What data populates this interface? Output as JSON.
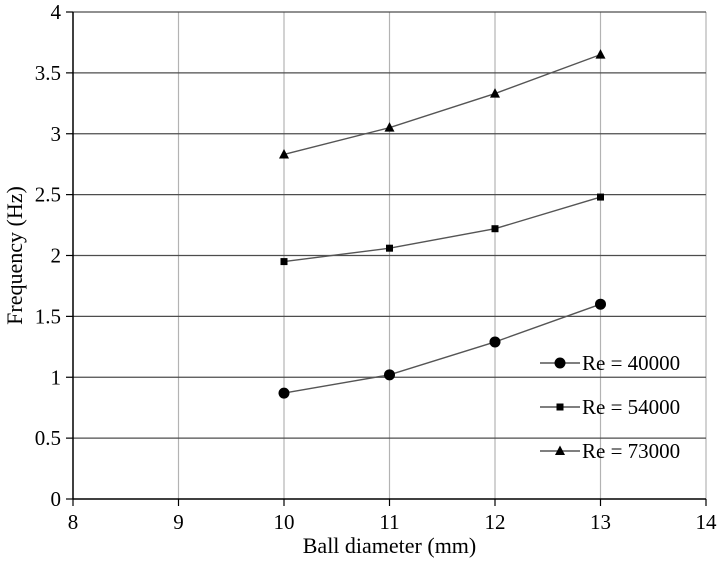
{
  "chart_data": {
    "type": "line",
    "title": "",
    "xlabel": "Ball diameter (mm)",
    "ylabel": "Frequency (Hz)",
    "xlim": [
      8,
      14
    ],
    "ylim": [
      0,
      4
    ],
    "xticks": [
      8,
      9,
      10,
      11,
      12,
      13,
      14
    ],
    "yticks": [
      0,
      0.5,
      1,
      1.5,
      2,
      2.5,
      3,
      3.5,
      4
    ],
    "x_tick_labels": [
      "8",
      "9",
      "10",
      "11",
      "12",
      "13",
      "14"
    ],
    "y_tick_labels": [
      "0",
      "0.5",
      "1",
      "1.5",
      "2",
      "2.5",
      "3",
      "3.5",
      "4"
    ],
    "grid": true,
    "legend_position": "right",
    "x": [
      10,
      11,
      12,
      13
    ],
    "series": [
      {
        "name": "Re = 40000",
        "marker": "circle",
        "values": [
          0.87,
          1.02,
          1.29,
          1.6
        ]
      },
      {
        "name": "Re = 54000",
        "marker": "square",
        "values": [
          1.95,
          2.06,
          2.22,
          2.48
        ]
      },
      {
        "name": "Re = 73000",
        "marker": "triangle",
        "values": [
          2.83,
          3.05,
          3.33,
          3.65
        ]
      }
    ],
    "colors": {
      "line": "#555555",
      "marker": "#000000",
      "grid": "#b3b3b3",
      "axis": "#000000"
    }
  }
}
